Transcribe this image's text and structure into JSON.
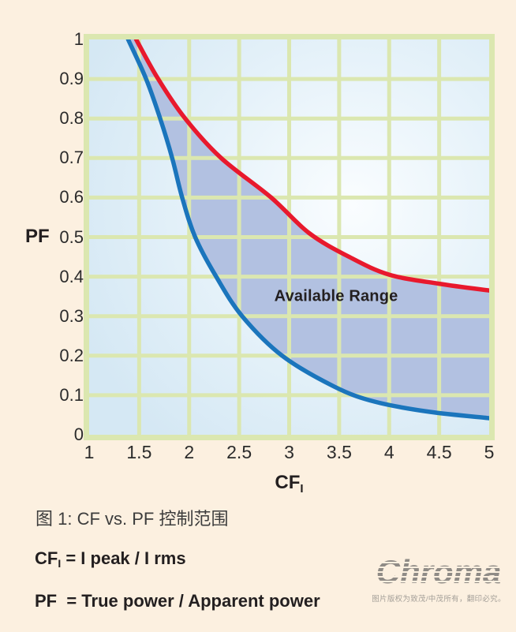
{
  "page": {
    "bg": "#fcf0e0"
  },
  "chart_data": {
    "type": "line",
    "subtype": "range-area",
    "title": "",
    "xlabel": {
      "base": "CF",
      "sub": "I"
    },
    "ylabel": "PF",
    "xlim": [
      1,
      5
    ],
    "ylim": [
      0,
      1
    ],
    "x_ticks": [
      1,
      1.5,
      2,
      2.5,
      3,
      3.5,
      4,
      4.5,
      5
    ],
    "y_ticks": [
      0,
      0.1,
      0.2,
      0.3,
      0.4,
      0.5,
      0.6,
      0.7,
      0.8,
      0.9,
      1
    ],
    "grid": true,
    "grid_color": "#dbe7b0",
    "plot_bg_center": "#fafdff",
    "plot_bg_mid": "#e4f1f9",
    "plot_bg_edge": "#d5e8f4",
    "annotation": {
      "text": "Available Range",
      "x": 3.47,
      "y": 0.35
    },
    "fill_between": {
      "color": "#b2c1e1"
    },
    "series": [
      {
        "name": "upper-limit",
        "color": "#e8192d",
        "points": [
          [
            1.47,
            1.0
          ],
          [
            1.69,
            0.9
          ],
          [
            1.96,
            0.8
          ],
          [
            2.32,
            0.7
          ],
          [
            2.82,
            0.6
          ],
          [
            3.2,
            0.51
          ],
          [
            3.6,
            0.45
          ],
          [
            4.0,
            0.405
          ],
          [
            4.5,
            0.382
          ],
          [
            5.0,
            0.365
          ]
        ]
      },
      {
        "name": "lower-limit",
        "color": "#1b75bc",
        "points": [
          [
            1.39,
            1.0
          ],
          [
            1.57,
            0.9
          ],
          [
            1.71,
            0.8
          ],
          [
            1.83,
            0.7
          ],
          [
            1.93,
            0.6
          ],
          [
            2.06,
            0.5
          ],
          [
            2.27,
            0.4
          ],
          [
            2.53,
            0.3
          ],
          [
            2.93,
            0.2
          ],
          [
            3.45,
            0.122
          ],
          [
            3.85,
            0.084
          ],
          [
            4.4,
            0.058
          ],
          [
            5.0,
            0.042
          ]
        ]
      }
    ]
  },
  "caption": "图 1: CF vs. PF 控制范围",
  "formulas": [
    {
      "base": "CF",
      "sub": "I",
      "rest": " = I peak / I rms"
    },
    {
      "base": "PF",
      "sub": "",
      "rest": "  = True power / Apparent power"
    }
  ],
  "logo": {
    "brand": "Chroma",
    "copyright": "图片版权为致茂/中茂所有，翻印必究。"
  }
}
